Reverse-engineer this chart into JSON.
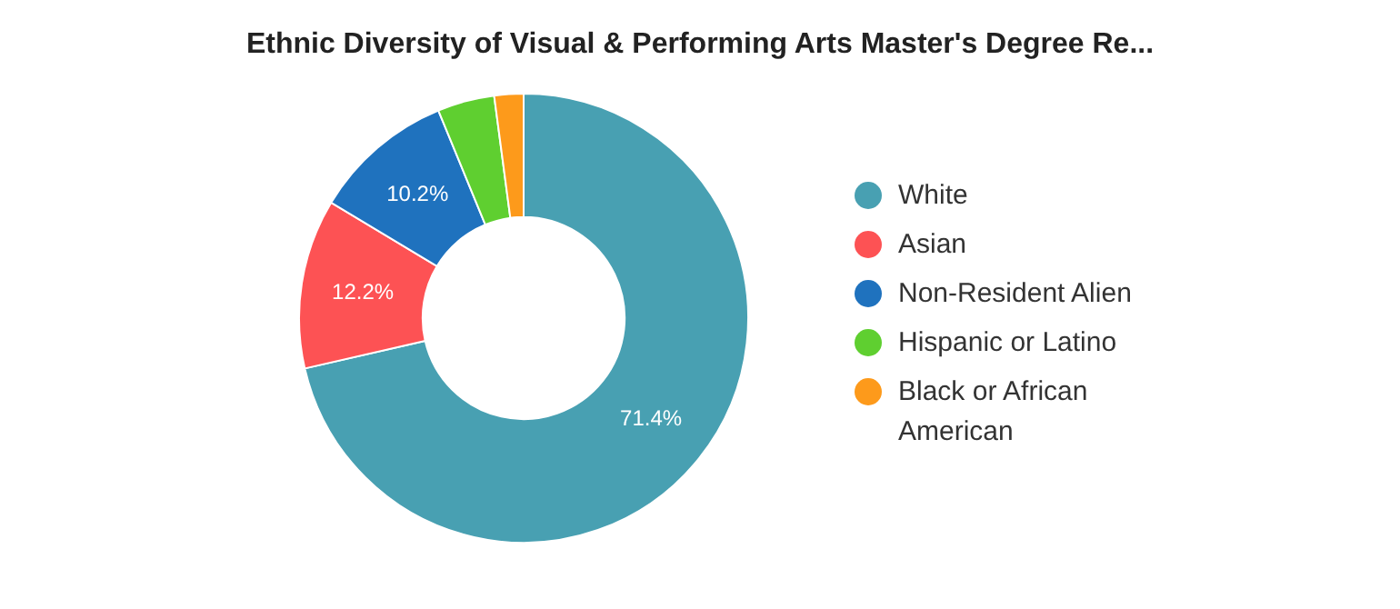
{
  "chart_data": {
    "type": "donut",
    "title": "Ethnic Diversity of Visual & Performing Arts Master's Degree Re...",
    "categories": [
      "White",
      "Asian",
      "Non-Resident Alien",
      "Hispanic or Latino",
      "Black or African American"
    ],
    "values": [
      71.4,
      12.2,
      10.2,
      4.1,
      2.1
    ],
    "colors": [
      "#48a0b2",
      "#fd5254",
      "#1f72be",
      "#5fcf30",
      "#fd9a1b"
    ],
    "value_labels": [
      "71.4%",
      "12.2%",
      "10.2%",
      null,
      null
    ],
    "legend": "right"
  }
}
